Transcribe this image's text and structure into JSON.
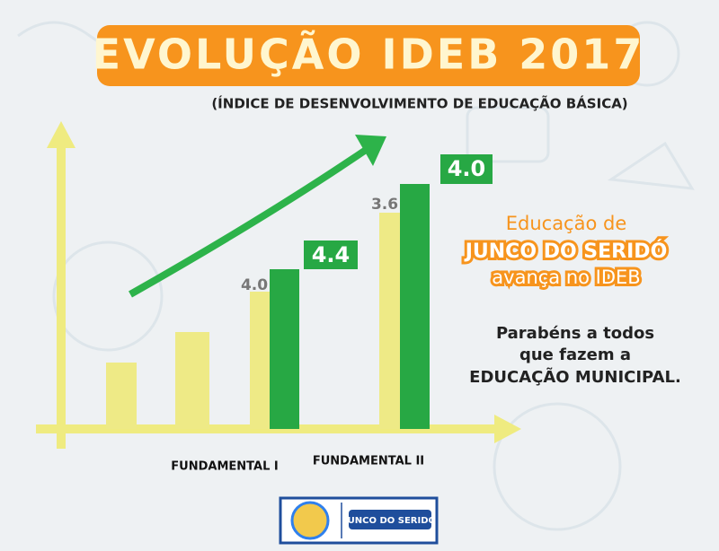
{
  "header": {
    "title": "EVOLUÇÃO IDEB 2017",
    "subtitle": "(ÍNDICE DE DESENVOLVIMENTO DE EDUCAÇÃO BÁSICA)"
  },
  "graphic": {
    "labels": [
      "4.0",
      "4.4",
      "3.6",
      "4.0"
    ],
    "groups": [
      "FUNDAMENTAL I",
      "FUNDAMENTAL II"
    ]
  },
  "message": {
    "headline": [
      "Educação de",
      "JUNCO DO SERIDÓ",
      "avança no IDEB"
    ],
    "congrats": [
      "Parabéns a todos",
      "que fazem a",
      "EDUCAÇÃO MUNICIPAL."
    ]
  },
  "footer": {
    "logo_text": "JUNCO DO SERIDÓ"
  }
}
